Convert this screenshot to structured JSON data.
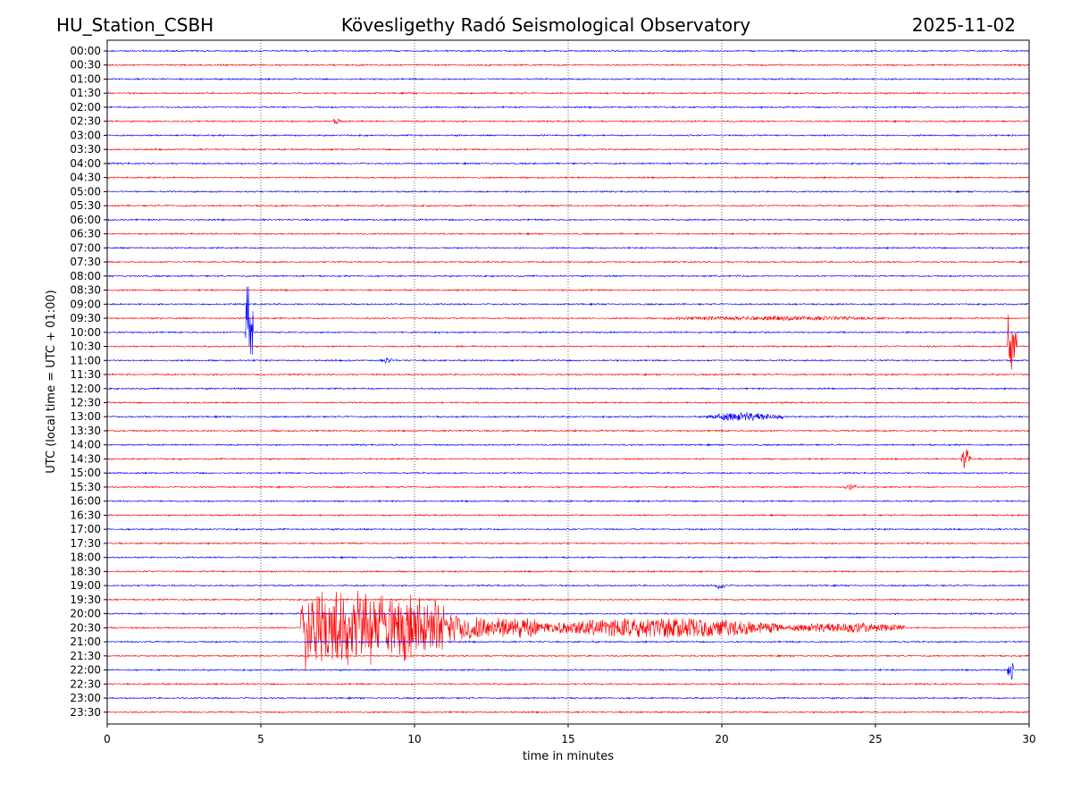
{
  "chart_data": {
    "type": "line",
    "title_left": "HU_Station_CSBH",
    "title": "Kövesligethy Radó Seismological Observatory",
    "title_right": "2025-11-02",
    "xlabel": "time in minutes",
    "ylabel": "UTC (local time = UTC + 01:00)",
    "xlim": [
      0,
      30
    ],
    "xticks": [
      "0",
      "5",
      "10",
      "15",
      "20",
      "25",
      "30"
    ],
    "xtick_values": [
      0,
      5,
      10,
      15,
      20,
      25,
      30
    ],
    "grid": "vertical dotted",
    "series_colors": [
      "#0000ff",
      "#ff0000"
    ],
    "rows": [
      "00:00",
      "00:30",
      "01:00",
      "01:30",
      "02:00",
      "02:30",
      "03:00",
      "03:30",
      "04:00",
      "04:30",
      "05:00",
      "05:30",
      "06:00",
      "06:30",
      "07:00",
      "07:30",
      "08:00",
      "08:30",
      "09:00",
      "09:30",
      "10:00",
      "10:30",
      "11:00",
      "11:30",
      "12:00",
      "12:30",
      "13:00",
      "13:30",
      "14:00",
      "14:30",
      "15:00",
      "15:30",
      "16:00",
      "16:30",
      "17:00",
      "17:30",
      "18:00",
      "18:30",
      "19:00",
      "19:30",
      "20:00",
      "20:30",
      "21:00",
      "21:30",
      "22:00",
      "22:30",
      "23:00",
      "23:30"
    ],
    "events": [
      {
        "row": "02:30",
        "start": 7.3,
        "end": 7.6,
        "amp": 0.2
      },
      {
        "row": "09:30",
        "start": 18.0,
        "end": 25.5,
        "amp": 0.15
      },
      {
        "row": "10:00",
        "start": 4.5,
        "end": 4.75,
        "amp": 4.9
      },
      {
        "row": "10:30",
        "start": 29.3,
        "end": 29.6,
        "amp": 2.5
      },
      {
        "row": "11:00",
        "start": 8.9,
        "end": 9.3,
        "amp": 0.2
      },
      {
        "row": "13:00",
        "start": 19.5,
        "end": 22.0,
        "amp": 0.3
      },
      {
        "row": "14:30",
        "start": 27.8,
        "end": 28.1,
        "amp": 0.7
      },
      {
        "row": "15:30",
        "start": 24.0,
        "end": 24.4,
        "amp": 0.2
      },
      {
        "row": "19:00",
        "start": 19.8,
        "end": 20.1,
        "amp": 0.3
      },
      {
        "row": "20:30",
        "start": 6.3,
        "end": 11.0,
        "amp": 3.5
      },
      {
        "row": "20:30",
        "start": 11.0,
        "end": 14.0,
        "amp": 1.2
      },
      {
        "row": "20:30",
        "start": 14.0,
        "end": 22.0,
        "amp": 0.7
      },
      {
        "row": "20:30",
        "start": 22.0,
        "end": 26.0,
        "amp": 0.35
      },
      {
        "row": "22:00",
        "start": 29.3,
        "end": 29.5,
        "amp": 0.8
      }
    ]
  }
}
